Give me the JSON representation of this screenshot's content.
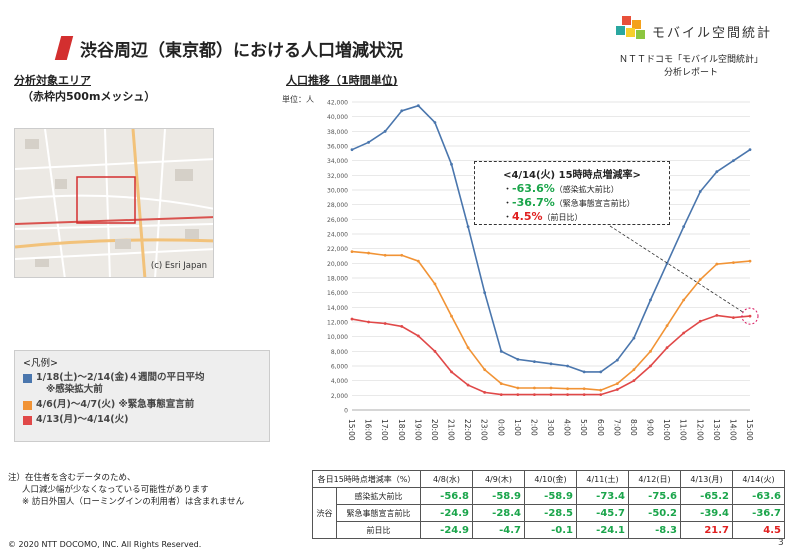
{
  "header": {
    "title": "渋谷周辺（東京都）における人口増減状況",
    "logo_text": "モバイル空間統計",
    "source_line1": "ＮＴＴドコモ「モバイル空間統計」",
    "source_line2": "分析レポート"
  },
  "area": {
    "title": "分析対象エリア",
    "subtitle": "（赤枠内500mメッシュ）",
    "map_credit": "(c) Esri Japan"
  },
  "legend": {
    "title": "<凡例>",
    "items": [
      {
        "label": "1/18(土)～2/14(金)４週間の平日平均",
        "sub": "※感染拡大前",
        "color": "#4a76ad"
      },
      {
        "label": "4/6(月)～4/7(火) ※緊急事態宣言前",
        "sub": "",
        "color": "#f19335"
      },
      {
        "label": "4/13(月)～4/14(火)",
        "sub": "",
        "color": "#e04848"
      }
    ]
  },
  "chart_data": {
    "type": "line",
    "title": "人口推移（1時間単位)",
    "ylabel": "単位：人",
    "ylim": [
      0,
      42000
    ],
    "yticks": [
      0,
      2000,
      4000,
      6000,
      8000,
      10000,
      12000,
      14000,
      16000,
      18000,
      20000,
      22000,
      24000,
      26000,
      28000,
      30000,
      32000,
      34000,
      36000,
      38000,
      40000,
      42000
    ],
    "ytick_labels": [
      "0",
      "2,000",
      "4,000",
      "6,000",
      "8,000",
      "10,000",
      "12,000",
      "14,000",
      "16,000",
      "18,000",
      "20,000",
      "22,000",
      "24,000",
      "26,000",
      "28,000",
      "30,000",
      "32,000",
      "34,000",
      "36,000",
      "38,000",
      "40,000",
      "42,000"
    ],
    "categories": [
      "15:00",
      "16:00",
      "17:00",
      "18:00",
      "19:00",
      "20:00",
      "21:00",
      "22:00",
      "23:00",
      "0:00",
      "1:00",
      "2:00",
      "3:00",
      "4:00",
      "5:00",
      "6:00",
      "7:00",
      "8:00",
      "9:00",
      "10:00",
      "11:00",
      "12:00",
      "13:00",
      "14:00",
      "15:00"
    ],
    "series": [
      {
        "name": "1/18(土)～2/14(金)４週間の平日平均",
        "color": "#4a76ad",
        "values": [
          35500,
          36500,
          38000,
          40800,
          41500,
          39200,
          33500,
          25000,
          16000,
          8000,
          6900,
          6600,
          6300,
          6000,
          5200,
          5200,
          6800,
          9800,
          15000,
          20000,
          25000,
          29800,
          32500,
          34000,
          35500
        ]
      },
      {
        "name": "4/6(月)～4/7(火) ※緊急事態宣言前",
        "color": "#f19335",
        "values": [
          21600,
          21400,
          21100,
          21100,
          20300,
          17200,
          12800,
          8500,
          5500,
          3600,
          3000,
          3000,
          3000,
          2900,
          2900,
          2700,
          3600,
          5500,
          8000,
          11500,
          15000,
          17800,
          19900,
          20100,
          20300
        ]
      },
      {
        "name": "4/13(月)～4/14(火)",
        "color": "#e04848",
        "values": [
          12400,
          12000,
          11800,
          11400,
          10100,
          8000,
          5200,
          3400,
          2400,
          2100,
          2100,
          2100,
          2100,
          2100,
          2100,
          2100,
          2800,
          4000,
          6000,
          8500,
          10500,
          12100,
          12900,
          12600,
          12800
        ]
      }
    ],
    "callout": {
      "title": "<4/14(火) 15時時点増減率>",
      "lines": [
        {
          "value": "-63.6%",
          "label": "（感染拡大前比）",
          "color": "#1ba54b"
        },
        {
          "value": "-36.7%",
          "label": "（緊急事態宣言前比）",
          "color": "#1ba54b"
        },
        {
          "value": "4.5%",
          "label": "（前日比）",
          "color": "#e02020"
        }
      ]
    }
  },
  "rate_table": {
    "header_label": "各日15時時点増減率（%）",
    "dates": [
      "4/8(水)",
      "4/9(木)",
      "4/10(金)",
      "4/11(土)",
      "4/12(日)",
      "4/13(月)",
      "4/14(火)"
    ],
    "group": "渋谷",
    "rows": [
      {
        "label": "感染拡大前比",
        "values": [
          "-56.8",
          "-58.9",
          "-58.9",
          "-73.4",
          "-75.6",
          "-65.2",
          "-63.6"
        ],
        "colors": [
          "#1ba54b",
          "#1ba54b",
          "#1ba54b",
          "#1ba54b",
          "#1ba54b",
          "#1ba54b",
          "#1ba54b"
        ]
      },
      {
        "label": "緊急事態宣言前比",
        "values": [
          "-24.9",
          "-28.4",
          "-28.5",
          "-45.7",
          "-50.2",
          "-39.4",
          "-36.7"
        ],
        "colors": [
          "#1ba54b",
          "#1ba54b",
          "#1ba54b",
          "#1ba54b",
          "#1ba54b",
          "#1ba54b",
          "#1ba54b"
        ]
      },
      {
        "label": "前日比",
        "values": [
          "-24.9",
          "-4.7",
          "-0.1",
          "-24.1",
          "-8.3",
          "21.7",
          "4.5"
        ],
        "colors": [
          "#1ba54b",
          "#1ba54b",
          "#1ba54b",
          "#1ba54b",
          "#1ba54b",
          "#e02020",
          "#e02020"
        ]
      }
    ]
  },
  "notes": {
    "line1": "注）在住者を含むデータのため、",
    "line2": "人口減少幅が少なくなっている可能性があります",
    "line3": "※ 訪日外国人（ローミングインの利用者）は含まれません"
  },
  "footer": {
    "copyright": "© 2020 NTT DOCOMO, INC. All Rights Reserved.",
    "page": "3"
  }
}
